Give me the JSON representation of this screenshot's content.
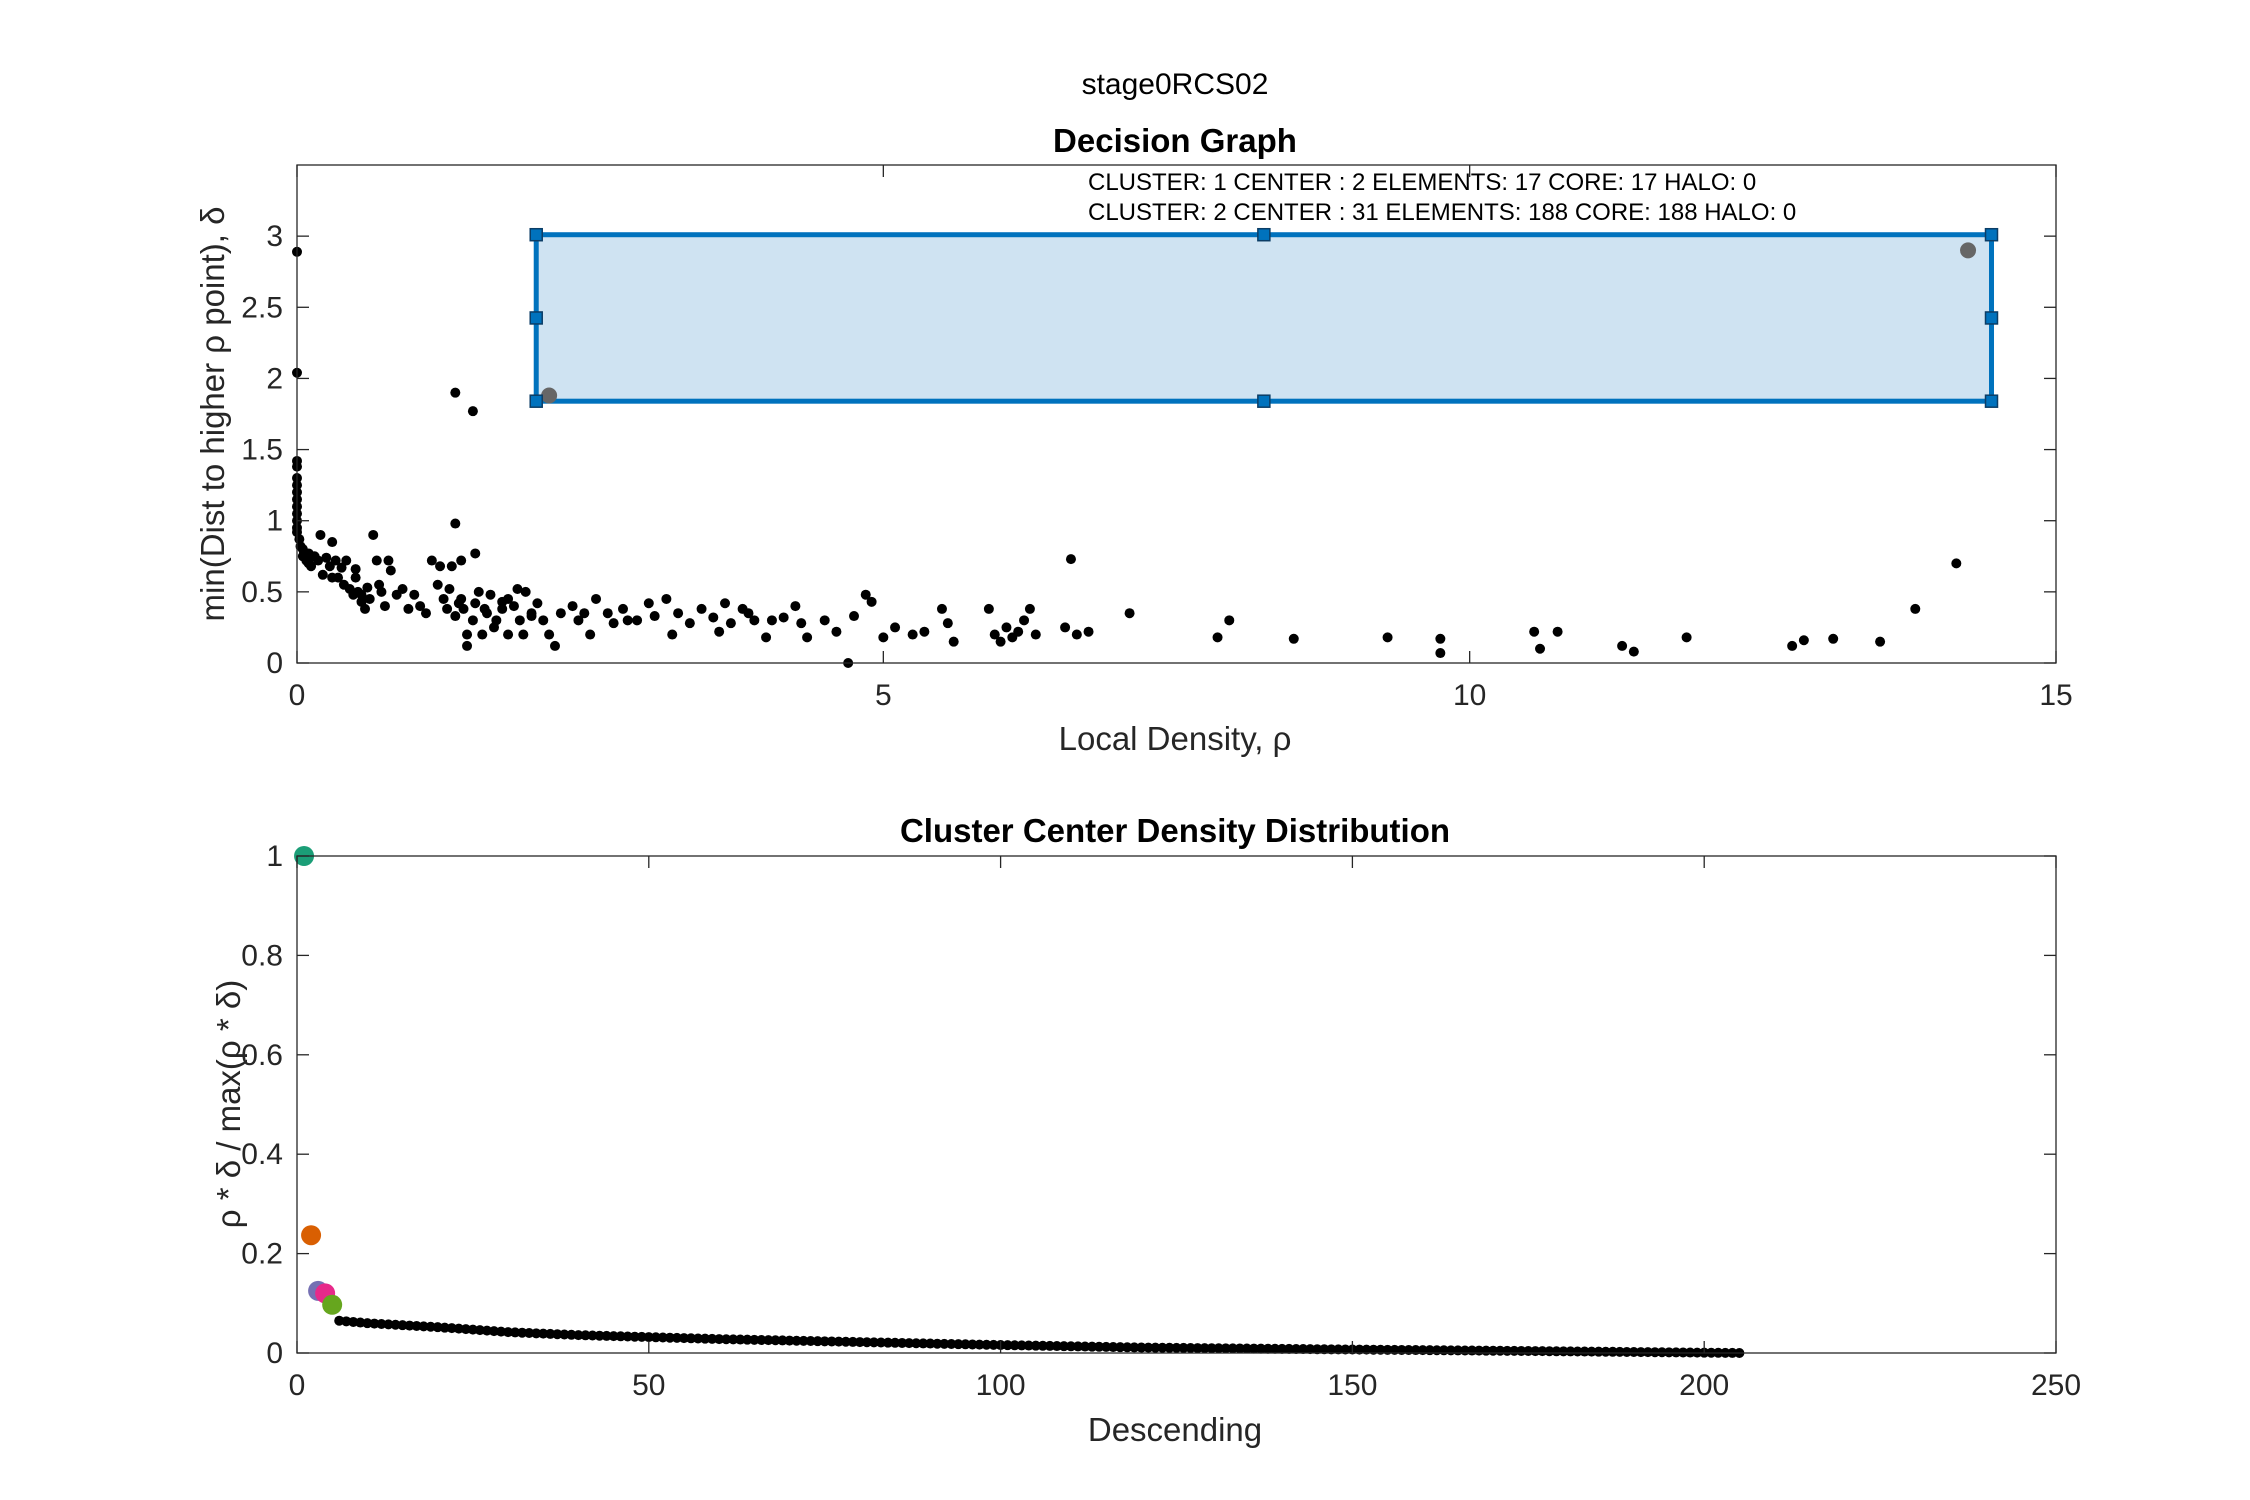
{
  "figure": {
    "suptitle": "stage0RCS02"
  },
  "colors": {
    "point": "#000000",
    "selection_fill": "#cce2f1",
    "selection_edge": "#0072bd",
    "selected_point": "#666666",
    "center_colors": [
      "#1b9e77",
      "#d95f02",
      "#7570b3",
      "#e7298a",
      "#66a61e"
    ]
  },
  "chart_data": [
    {
      "type": "scatter",
      "title": "Decision Graph",
      "xlabel": "Local Density, ρ",
      "ylabel": "min(Dist to higher ρ point), δ",
      "xlim": [
        0,
        15
      ],
      "ylim": [
        0,
        3.5
      ],
      "xticks": [
        0,
        5,
        10,
        15
      ],
      "yticks": [
        0,
        0.5,
        1,
        1.5,
        2,
        2.5,
        3
      ],
      "ytick_labels": [
        "0",
        "0.5",
        "1",
        "1.5",
        "2",
        "2.5",
        "3"
      ],
      "grid": false,
      "annotations": [
        "CLUSTER: 1 CENTER : 2 ELEMENTS: 17 CORE: 17 HALO: 0",
        "CLUSTER: 2 CENTER : 31 ELEMENTS: 188 CORE: 188 HALO: 0"
      ],
      "selection_rect": {
        "x0": 2.04,
        "x1": 14.45,
        "y0": 1.84,
        "y1": 3.01
      },
      "selected_points": [
        [
          2.15,
          1.88
        ],
        [
          14.25,
          2.9
        ]
      ],
      "points": [
        [
          0.0,
          2.89
        ],
        [
          0.0,
          2.04
        ],
        [
          0.0,
          1.42
        ],
        [
          0.0,
          1.38
        ],
        [
          0.0,
          1.3
        ],
        [
          0.0,
          1.25
        ],
        [
          0.0,
          1.2
        ],
        [
          0.0,
          1.15
        ],
        [
          0.0,
          1.1
        ],
        [
          0.0,
          1.05
        ],
        [
          0.0,
          1.0
        ],
        [
          0.0,
          0.95
        ],
        [
          0.0,
          0.92
        ],
        [
          0.02,
          0.87
        ],
        [
          0.03,
          0.82
        ],
        [
          0.05,
          0.8
        ],
        [
          0.05,
          0.75
        ],
        [
          0.06,
          0.78
        ],
        [
          0.08,
          0.72
        ],
        [
          0.1,
          0.77
        ],
        [
          0.1,
          0.7
        ],
        [
          0.12,
          0.68
        ],
        [
          0.15,
          0.75
        ],
        [
          0.18,
          0.72
        ],
        [
          0.2,
          0.9
        ],
        [
          0.22,
          0.62
        ],
        [
          0.25,
          0.74
        ],
        [
          0.28,
          0.68
        ],
        [
          0.3,
          0.85
        ],
        [
          0.3,
          0.6
        ],
        [
          0.33,
          0.72
        ],
        [
          0.35,
          0.6
        ],
        [
          0.38,
          0.67
        ],
        [
          0.4,
          0.55
        ],
        [
          0.42,
          0.72
        ],
        [
          0.45,
          0.52
        ],
        [
          0.48,
          0.48
        ],
        [
          0.5,
          0.6
        ],
        [
          0.5,
          0.66
        ],
        [
          0.52,
          0.5
        ],
        [
          0.55,
          0.48
        ],
        [
          0.55,
          0.43
        ],
        [
          0.58,
          0.38
        ],
        [
          0.6,
          0.53
        ],
        [
          0.62,
          0.45
        ],
        [
          0.65,
          0.9
        ],
        [
          0.68,
          0.72
        ],
        [
          0.7,
          0.55
        ],
        [
          0.72,
          0.5
        ],
        [
          0.75,
          0.4
        ],
        [
          0.78,
          0.72
        ],
        [
          0.8,
          0.65
        ],
        [
          0.85,
          0.48
        ],
        [
          0.9,
          0.52
        ],
        [
          0.95,
          0.38
        ],
        [
          1.0,
          0.48
        ],
        [
          1.05,
          0.4
        ],
        [
          1.1,
          0.35
        ],
        [
          1.15,
          0.72
        ],
        [
          1.2,
          0.55
        ],
        [
          1.22,
          0.68
        ],
        [
          1.25,
          0.45
        ],
        [
          1.28,
          0.38
        ],
        [
          1.3,
          0.52
        ],
        [
          1.32,
          0.68
        ],
        [
          1.35,
          0.33
        ],
        [
          1.38,
          0.42
        ],
        [
          1.4,
          0.45
        ],
        [
          1.42,
          0.38
        ],
        [
          1.45,
          0.2
        ],
        [
          1.45,
          0.12
        ],
        [
          1.5,
          0.3
        ],
        [
          1.52,
          0.42
        ],
        [
          1.55,
          0.5
        ],
        [
          1.58,
          0.2
        ],
        [
          1.6,
          0.38
        ],
        [
          1.62,
          0.35
        ],
        [
          1.65,
          0.48
        ],
        [
          1.68,
          0.25
        ],
        [
          1.7,
          0.3
        ],
        [
          1.75,
          0.38
        ],
        [
          1.8,
          0.45
        ],
        [
          1.85,
          0.4
        ],
        [
          1.88,
          0.52
        ],
        [
          1.9,
          0.3
        ],
        [
          1.93,
          0.2
        ],
        [
          1.95,
          0.5
        ],
        [
          2.0,
          0.35
        ],
        [
          2.05,
          0.42
        ],
        [
          2.1,
          0.3
        ],
        [
          2.15,
          0.2
        ],
        [
          2.2,
          0.12
        ],
        [
          2.25,
          0.35
        ],
        [
          1.35,
          0.98
        ],
        [
          1.4,
          0.72
        ],
        [
          1.52,
          0.77
        ],
        [
          1.35,
          1.9
        ],
        [
          1.5,
          1.77
        ],
        [
          1.75,
          0.43
        ],
        [
          1.8,
          0.2
        ],
        [
          2.0,
          0.33
        ],
        [
          2.35,
          0.4
        ],
        [
          2.4,
          0.3
        ],
        [
          2.45,
          0.35
        ],
        [
          2.5,
          0.2
        ],
        [
          2.55,
          0.45
        ],
        [
          2.65,
          0.35
        ],
        [
          2.7,
          0.28
        ],
        [
          2.78,
          0.38
        ],
        [
          2.82,
          0.3
        ],
        [
          2.9,
          0.3
        ],
        [
          3.0,
          0.42
        ],
        [
          3.05,
          0.33
        ],
        [
          3.15,
          0.45
        ],
        [
          3.2,
          0.2
        ],
        [
          3.25,
          0.35
        ],
        [
          3.35,
          0.28
        ],
        [
          3.45,
          0.38
        ],
        [
          3.55,
          0.32
        ],
        [
          3.6,
          0.22
        ],
        [
          3.65,
          0.42
        ],
        [
          3.7,
          0.28
        ],
        [
          3.8,
          0.38
        ],
        [
          3.85,
          0.35
        ],
        [
          3.9,
          0.3
        ],
        [
          4.0,
          0.18
        ],
        [
          4.05,
          0.3
        ],
        [
          4.15,
          0.32
        ],
        [
          4.25,
          0.4
        ],
        [
          4.3,
          0.28
        ],
        [
          4.35,
          0.18
        ],
        [
          4.5,
          0.3
        ],
        [
          4.6,
          0.22
        ],
        [
          4.7,
          0.0
        ],
        [
          4.75,
          0.33
        ],
        [
          4.85,
          0.48
        ],
        [
          4.9,
          0.43
        ],
        [
          5.0,
          0.18
        ],
        [
          5.1,
          0.25
        ],
        [
          5.25,
          0.2
        ],
        [
          5.35,
          0.22
        ],
        [
          5.5,
          0.38
        ],
        [
          5.55,
          0.28
        ],
        [
          5.6,
          0.15
        ],
        [
          5.9,
          0.38
        ],
        [
          5.95,
          0.2
        ],
        [
          6.0,
          0.15
        ],
        [
          6.05,
          0.25
        ],
        [
          6.1,
          0.18
        ],
        [
          6.15,
          0.22
        ],
        [
          6.2,
          0.3
        ],
        [
          6.25,
          0.38
        ],
        [
          6.3,
          0.2
        ],
        [
          6.55,
          0.25
        ],
        [
          6.6,
          0.73
        ],
        [
          6.65,
          0.2
        ],
        [
          6.75,
          0.22
        ],
        [
          7.1,
          0.35
        ],
        [
          7.85,
          0.18
        ],
        [
          7.95,
          0.3
        ],
        [
          8.5,
          0.17
        ],
        [
          9.3,
          0.18
        ],
        [
          9.75,
          0.17
        ],
        [
          9.75,
          0.07
        ],
        [
          10.55,
          0.22
        ],
        [
          10.6,
          0.1
        ],
        [
          10.75,
          0.22
        ],
        [
          11.3,
          0.12
        ],
        [
          11.4,
          0.08
        ],
        [
          11.85,
          0.18
        ],
        [
          12.75,
          0.12
        ],
        [
          12.85,
          0.16
        ],
        [
          13.1,
          0.17
        ],
        [
          13.5,
          0.15
        ],
        [
          13.8,
          0.38
        ],
        [
          14.15,
          0.7
        ]
      ]
    },
    {
      "type": "scatter",
      "title": "Cluster Center Density Distribution",
      "xlabel": "Descending",
      "ylabel": "ρ * δ / max(ρ * δ)",
      "xlim": [
        0,
        250
      ],
      "ylim": [
        0,
        1
      ],
      "xticks": [
        0,
        50,
        100,
        150,
        200,
        250
      ],
      "yticks": [
        0,
        0.2,
        0.4,
        0.6,
        0.8,
        1
      ],
      "ytick_labels": [
        "0",
        "0.2",
        "0.4",
        "0.6",
        "0.8",
        "1"
      ],
      "grid": false,
      "highlighted": [
        {
          "x": 1,
          "y": 1.0
        },
        {
          "x": 2,
          "y": 0.237
        },
        {
          "x": 3,
          "y": 0.125
        },
        {
          "x": 4,
          "y": 0.12
        },
        {
          "x": 5,
          "y": 0.097
        }
      ],
      "descending_curve": {
        "n_points": 205,
        "start_index": 6,
        "y_start": 0.065,
        "knots": [
          [
            6,
            0.065
          ],
          [
            10,
            0.06
          ],
          [
            20,
            0.052
          ],
          [
            30,
            0.042
          ],
          [
            40,
            0.036
          ],
          [
            50,
            0.032
          ],
          [
            60,
            0.028
          ],
          [
            80,
            0.022
          ],
          [
            100,
            0.016
          ],
          [
            120,
            0.011
          ],
          [
            150,
            0.007
          ],
          [
            175,
            0.004
          ],
          [
            205,
            0.0
          ]
        ]
      }
    }
  ]
}
